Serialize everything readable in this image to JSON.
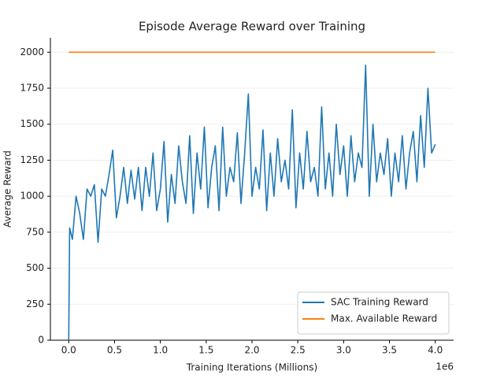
{
  "chart_data": {
    "type": "line",
    "title": "Episode Average Reward over Training",
    "xlabel": "Training Iterations (Millions)",
    "ylabel": "Average Reward",
    "x_offset_label": "1e6",
    "xlim": [
      -0.2,
      4.2
    ],
    "ylim": [
      0,
      2100
    ],
    "xticks": [
      {
        "value": 0,
        "label": "0.0"
      },
      0.5,
      {
        "value": 1,
        "label": "1.0"
      },
      1.5,
      {
        "value": 2,
        "label": "2.0"
      },
      2.5,
      {
        "value": 3,
        "label": "3.0"
      },
      3.5,
      {
        "value": 4,
        "label": "4.0"
      }
    ],
    "yticks": [
      0,
      250,
      500,
      750,
      1000,
      1250,
      1500,
      1750,
      2000
    ],
    "grid": true,
    "legend": "lower right",
    "series": [
      {
        "name": "SAC Training Reward",
        "color": "#1f77b4",
        "x": [
          0,
          0.01,
          0.04,
          0.08,
          0.12,
          0.16,
          0.2,
          0.24,
          0.28,
          0.32,
          0.36,
          0.4,
          0.44,
          0.48,
          0.52,
          0.56,
          0.6,
          0.64,
          0.68,
          0.72,
          0.76,
          0.8,
          0.84,
          0.88,
          0.92,
          0.96,
          1,
          1.04,
          1.08,
          1.12,
          1.16,
          1.2,
          1.24,
          1.28,
          1.32,
          1.36,
          1.4,
          1.44,
          1.48,
          1.52,
          1.56,
          1.6,
          1.64,
          1.68,
          1.72,
          1.76,
          1.8,
          1.84,
          1.88,
          1.92,
          1.96,
          2,
          2.04,
          2.08,
          2.12,
          2.16,
          2.2,
          2.24,
          2.28,
          2.32,
          2.36,
          2.4,
          2.44,
          2.48,
          2.52,
          2.56,
          2.6,
          2.64,
          2.68,
          2.72,
          2.76,
          2.8,
          2.84,
          2.88,
          2.92,
          2.96,
          3,
          3.04,
          3.08,
          3.12,
          3.16,
          3.2,
          3.24,
          3.28,
          3.32,
          3.36,
          3.4,
          3.44,
          3.48,
          3.52,
          3.56,
          3.6,
          3.64,
          3.68,
          3.72,
          3.76,
          3.8,
          3.84,
          3.88,
          3.92,
          3.96,
          4
        ],
        "values": [
          0,
          780,
          700,
          1000,
          880,
          700,
          1050,
          1000,
          1080,
          680,
          1050,
          1000,
          1150,
          1320,
          850,
          1000,
          1200,
          950,
          1180,
          980,
          1200,
          900,
          1200,
          1000,
          1300,
          900,
          1050,
          1380,
          820,
          1150,
          950,
          1350,
          1100,
          950,
          1420,
          880,
          1300,
          1050,
          1480,
          920,
          1200,
          1350,
          900,
          1480,
          1000,
          1200,
          1100,
          1440,
          950,
          1300,
          1710,
          1000,
          1200,
          1050,
          1460,
          900,
          1300,
          1000,
          1400,
          1100,
          1250,
          1050,
          1600,
          920,
          1300,
          1050,
          1450,
          1100,
          1200,
          1000,
          1620,
          1050,
          1300,
          1000,
          1500,
          1150,
          1350,
          1000,
          1420,
          1100,
          1300,
          1200,
          1910,
          1000,
          1500,
          1100,
          1300,
          1150,
          1400,
          1000,
          1300,
          1100,
          1420,
          1050,
          1300,
          1450,
          1100,
          1560,
          1200,
          1750,
          1300,
          1360
        ]
      },
      {
        "name": "Max. Available Reward",
        "color": "#ff7f0e",
        "x": [
          0,
          4
        ],
        "values": [
          2000,
          2000
        ]
      }
    ]
  }
}
